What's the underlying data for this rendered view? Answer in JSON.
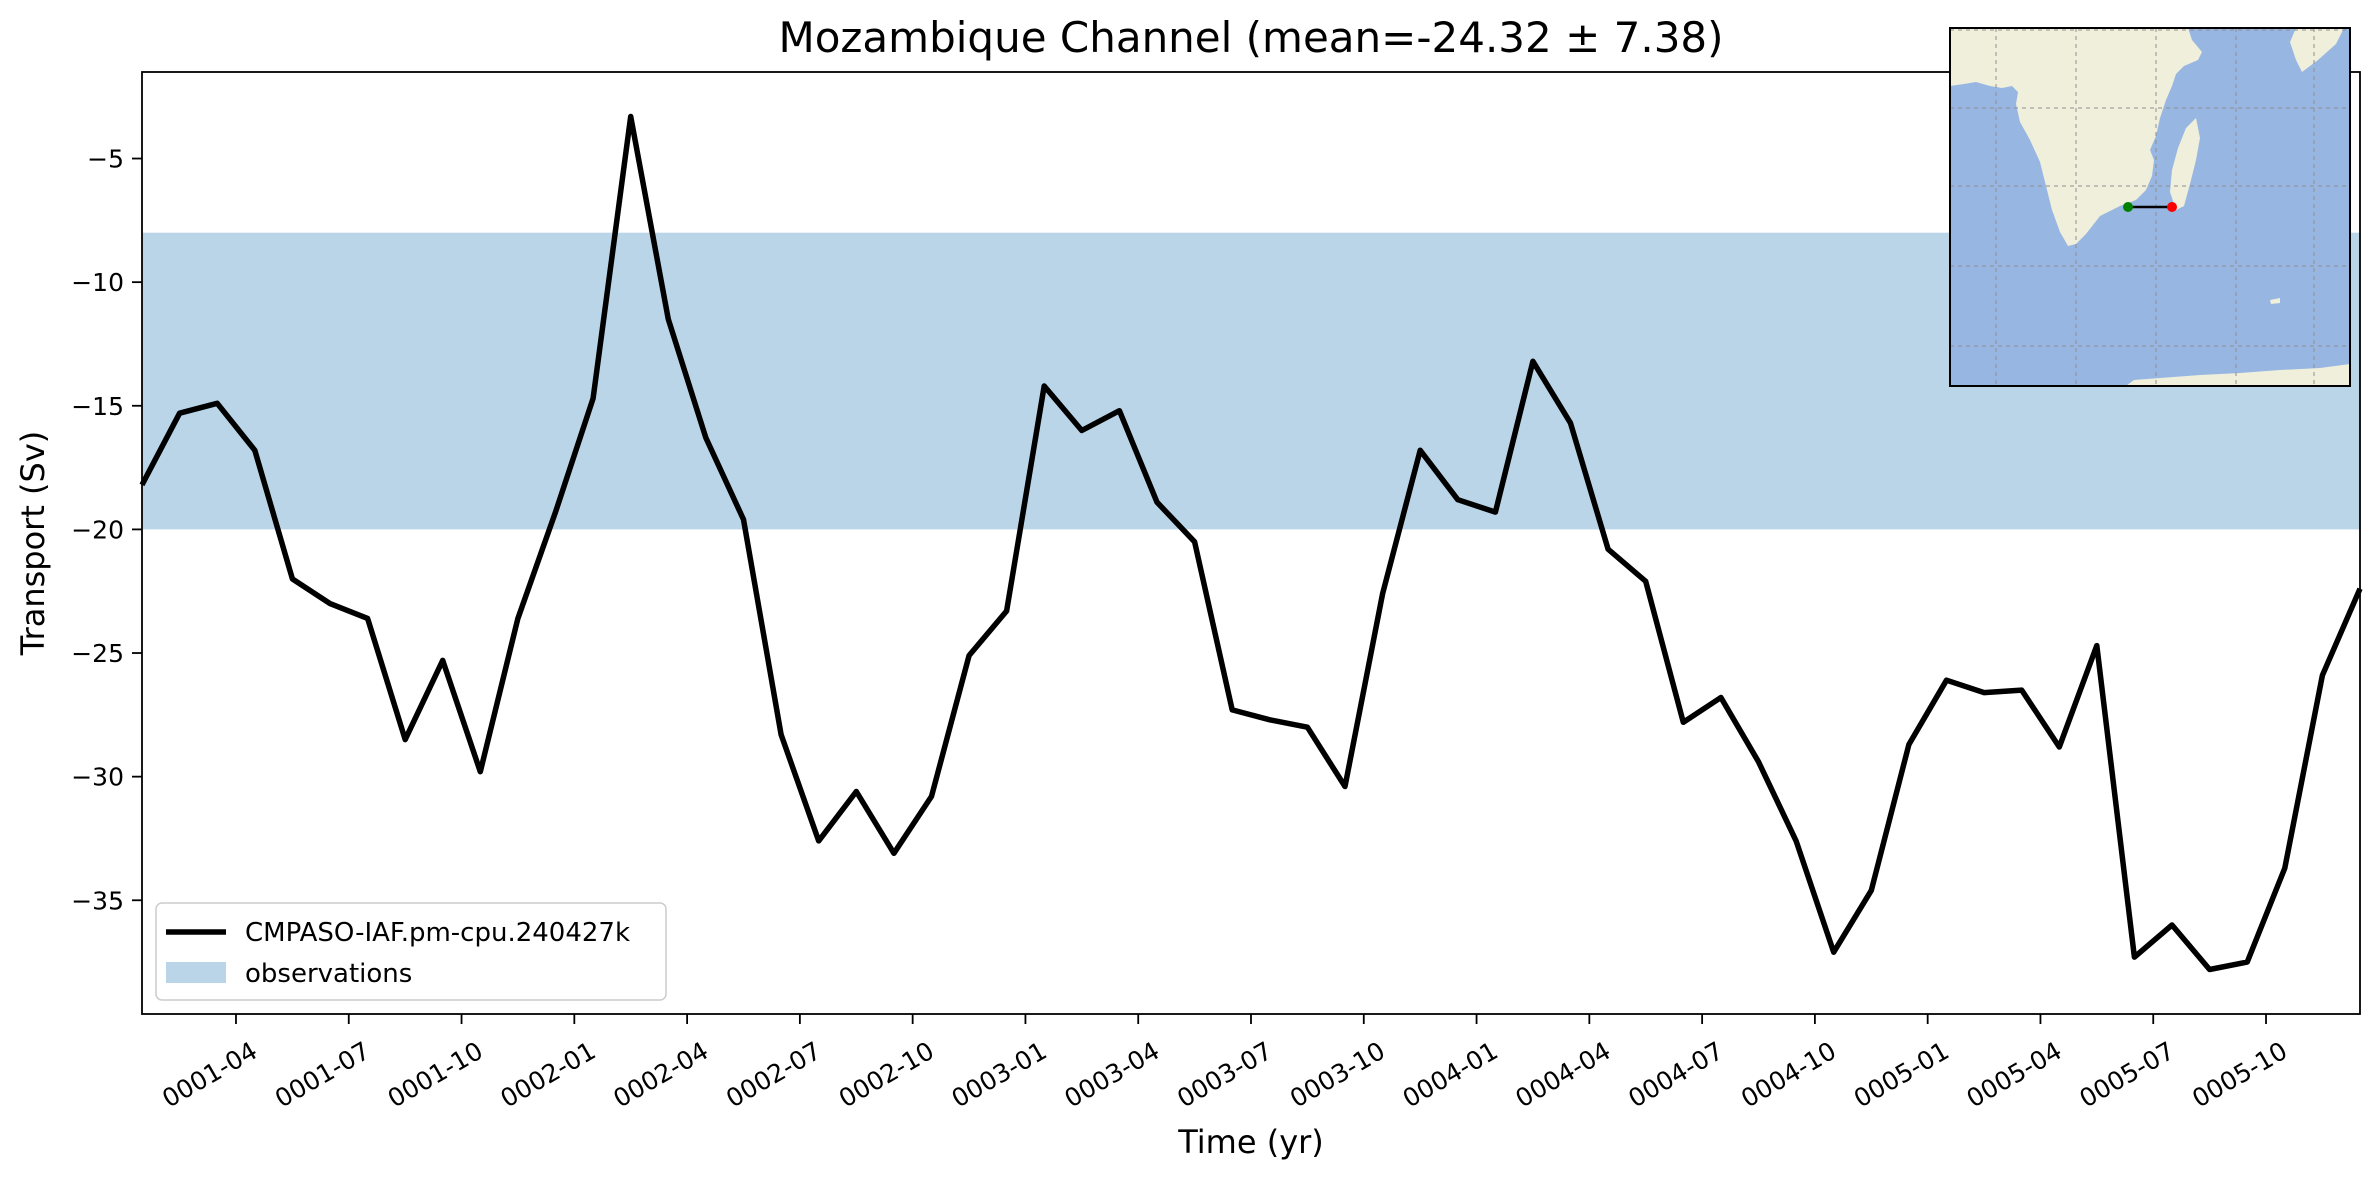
{
  "chart_data": {
    "type": "line",
    "title": "Mozambique Channel (mean=-24.32 ± 7.38)",
    "xlabel": "Time (yr)",
    "ylabel": "Transport (Sv)",
    "xlim": [
      1.5,
      60.5
    ],
    "ylim": [
      -39.6,
      -1.5
    ],
    "yticks": [
      -35,
      -30,
      -25,
      -20,
      -15,
      -10,
      -5
    ],
    "xticks": [
      {
        "x": 4,
        "label": "0001-04"
      },
      {
        "x": 7,
        "label": "0001-07"
      },
      {
        "x": 10,
        "label": "0001-10"
      },
      {
        "x": 13,
        "label": "0002-01"
      },
      {
        "x": 16,
        "label": "0002-04"
      },
      {
        "x": 19,
        "label": "0002-07"
      },
      {
        "x": 22,
        "label": "0002-10"
      },
      {
        "x": 25,
        "label": "0003-01"
      },
      {
        "x": 28,
        "label": "0003-04"
      },
      {
        "x": 31,
        "label": "0003-07"
      },
      {
        "x": 34,
        "label": "0003-10"
      },
      {
        "x": 37,
        "label": "0004-01"
      },
      {
        "x": 40,
        "label": "0004-04"
      },
      {
        "x": 43,
        "label": "0004-07"
      },
      {
        "x": 46,
        "label": "0004-10"
      },
      {
        "x": 49,
        "label": "0005-01"
      },
      {
        "x": 52,
        "label": "0005-04"
      },
      {
        "x": 55,
        "label": "0005-07"
      },
      {
        "x": 58,
        "label": "0005-10"
      }
    ],
    "grid": false,
    "legend_position": "lower-left",
    "observations_band": {
      "name": "observations",
      "ymin": -20,
      "ymax": -8,
      "color": "#bad5e8"
    },
    "series": [
      {
        "name": "CMPASO-IAF.pm-cpu.240427k",
        "color": "#000000",
        "x": [
          1.5,
          2.5,
          3.5,
          4.5,
          5.5,
          6.5,
          7.5,
          8.5,
          9.5,
          10.5,
          11.5,
          12.5,
          13.5,
          14.5,
          15.5,
          16.5,
          17.5,
          18.5,
          19.5,
          20.5,
          21.5,
          22.5,
          23.5,
          24.5,
          25.5,
          26.5,
          27.5,
          28.5,
          29.5,
          30.5,
          31.5,
          32.5,
          33.5,
          34.5,
          35.5,
          36.5,
          37.5,
          38.5,
          39.5,
          40.5,
          41.5,
          42.5,
          43.5,
          44.5,
          45.5,
          46.5,
          47.5,
          48.5,
          49.5,
          50.5,
          51.5,
          52.5,
          53.5,
          54.5,
          55.5,
          56.5,
          57.5,
          58.5,
          59.5,
          60.5
        ],
        "values": [
          -18.2,
          -15.3,
          -14.9,
          -16.8,
          -22.0,
          -23.0,
          -23.6,
          -28.5,
          -25.3,
          -29.8,
          -23.6,
          -19.3,
          -14.7,
          -3.3,
          -11.5,
          -16.3,
          -19.6,
          -28.3,
          -32.6,
          -30.6,
          -33.1,
          -30.8,
          -25.1,
          -23.3,
          -14.2,
          -16.0,
          -15.2,
          -18.9,
          -20.5,
          -27.3,
          -27.7,
          -28.0,
          -30.4,
          -22.6,
          -16.8,
          -18.8,
          -19.3,
          -13.2,
          -15.7,
          -20.8,
          -22.1,
          -27.8,
          -26.8,
          -29.4,
          -32.6,
          -37.1,
          -34.6,
          -28.7,
          -26.1,
          -26.6,
          -26.5,
          -28.8,
          -24.7,
          -37.3,
          -36.0,
          -37.8,
          -37.5,
          -33.7,
          -25.9,
          -22.4
        ]
      }
    ]
  },
  "inset_map": {
    "land_color": "#efefdc",
    "ocean_color": "#97b6e1",
    "section_start_color": "#008000",
    "section_end_color": "#ff0000"
  }
}
